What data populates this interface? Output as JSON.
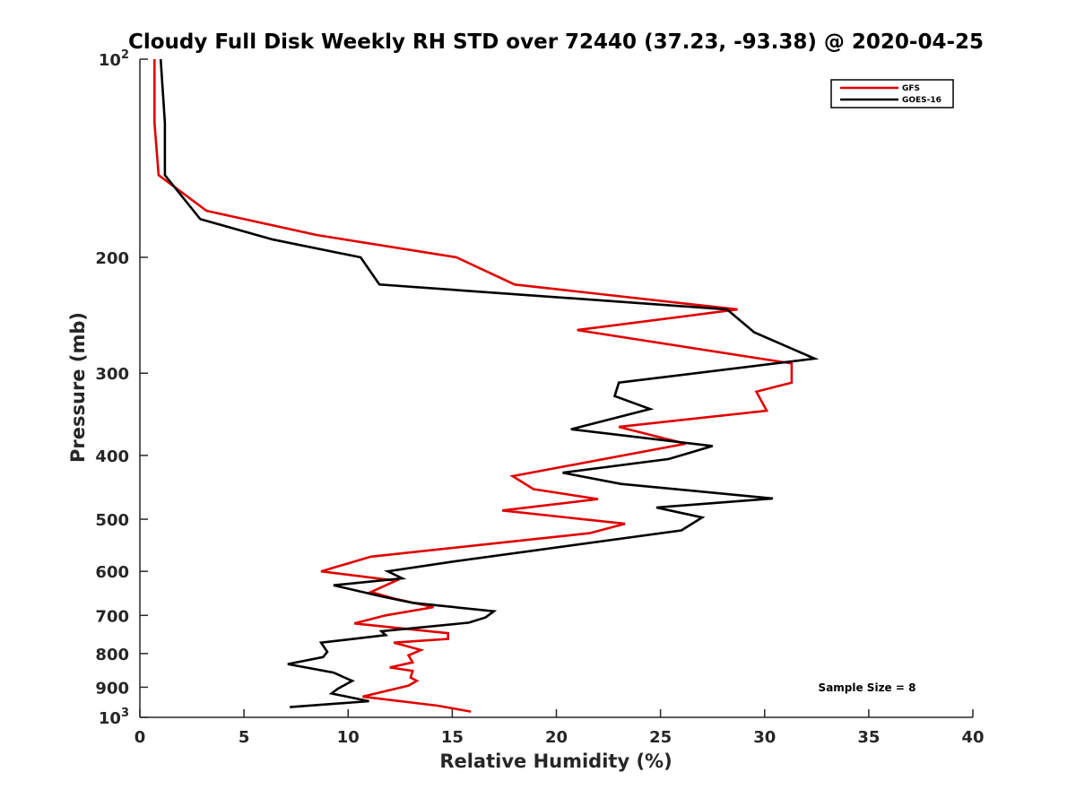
{
  "chart_data": {
    "type": "line",
    "title": "Cloudy Full Disk Weekly RH STD over 72440 (37.23, -93.38) @ 2020-04-25",
    "xlabel": "Relative Humidity (%)",
    "ylabel": "Pressure (mb)",
    "xlim": [
      0,
      40
    ],
    "ylim": [
      100,
      1000
    ],
    "y_scale": "log",
    "y_reversed": true,
    "grid": false,
    "legend_position": "top-right",
    "x_ticks": [
      "0",
      "5",
      "10",
      "15",
      "20",
      "25",
      "30",
      "35",
      "40"
    ],
    "y_ticks": [
      {
        "value": 100,
        "label": "10",
        "sup": "2"
      },
      {
        "value": 200,
        "label": "200",
        "sup": ""
      },
      {
        "value": 300,
        "label": "300",
        "sup": ""
      },
      {
        "value": 400,
        "label": "400",
        "sup": ""
      },
      {
        "value": 500,
        "label": "500",
        "sup": ""
      },
      {
        "value": 600,
        "label": "600",
        "sup": ""
      },
      {
        "value": 700,
        "label": "700",
        "sup": ""
      },
      {
        "value": 800,
        "label": "800",
        "sup": ""
      },
      {
        "value": 900,
        "label": "900",
        "sup": ""
      },
      {
        "value": 1000,
        "label": "10",
        "sup": "3"
      }
    ],
    "annotation": "Sample Size = 8",
    "series": [
      {
        "name": "GFS",
        "color": "#e00000",
        "points": [
          [
            0.7,
            100
          ],
          [
            0.7,
            125
          ],
          [
            0.9,
            150
          ],
          [
            3.2,
            170
          ],
          [
            8.5,
            185
          ],
          [
            15.2,
            200
          ],
          [
            18,
            220
          ],
          [
            28.7,
            240
          ],
          [
            21,
            258
          ],
          [
            31.3,
            290
          ],
          [
            31.3,
            310
          ],
          [
            29.6,
            320
          ],
          [
            30.1,
            342
          ],
          [
            23,
            362
          ],
          [
            26.2,
            384
          ],
          [
            17.9,
            430
          ],
          [
            18.9,
            450
          ],
          [
            22.0,
            466
          ],
          [
            17.4,
            485
          ],
          [
            23.3,
            508
          ],
          [
            21.6,
            525
          ],
          [
            11.1,
            570
          ],
          [
            8.7,
            600
          ],
          [
            12.3,
            620
          ],
          [
            11.1,
            645
          ],
          [
            12.2,
            660
          ],
          [
            14.1,
            680
          ],
          [
            11.8,
            700
          ],
          [
            10.3,
            720
          ],
          [
            14.8,
            745
          ],
          [
            14.8,
            760
          ],
          [
            12.2,
            770
          ],
          [
            13.5,
            790
          ],
          [
            12.9,
            805
          ],
          [
            13.1,
            825
          ],
          [
            12.0,
            840
          ],
          [
            13.1,
            850
          ],
          [
            13.0,
            870
          ],
          [
            13.3,
            880
          ],
          [
            12.9,
            895
          ],
          [
            10.7,
            930
          ],
          [
            14.3,
            960
          ],
          [
            15.9,
            980
          ]
        ]
      },
      {
        "name": "GOES-16",
        "color": "#000000",
        "points": [
          [
            1.0,
            100
          ],
          [
            1.2,
            125
          ],
          [
            1.2,
            150
          ],
          [
            2.9,
            175
          ],
          [
            6.4,
            188
          ],
          [
            10.6,
            200
          ],
          [
            11.5,
            220
          ],
          [
            28.2,
            240
          ],
          [
            29.5,
            260
          ],
          [
            32.4,
            285
          ],
          [
            23.0,
            310
          ],
          [
            22.8,
            325
          ],
          [
            24.5,
            340
          ],
          [
            20.7,
            365
          ],
          [
            27.5,
            387
          ],
          [
            25.4,
            405
          ],
          [
            20.3,
            425
          ],
          [
            23.1,
            442
          ],
          [
            30.4,
            465
          ],
          [
            24.8,
            480
          ],
          [
            27.0,
            497
          ],
          [
            26.0,
            520
          ],
          [
            15.0,
            580
          ],
          [
            11.9,
            600
          ],
          [
            12.6,
            615
          ],
          [
            9.3,
            630
          ],
          [
            11.6,
            655
          ],
          [
            13.1,
            670
          ],
          [
            17.0,
            690
          ],
          [
            16.6,
            705
          ],
          [
            15.8,
            718
          ],
          [
            11.6,
            740
          ],
          [
            11.8,
            750
          ],
          [
            8.7,
            770
          ],
          [
            9.0,
            795
          ],
          [
            8.8,
            810
          ],
          [
            7.1,
            830
          ],
          [
            9.3,
            855
          ],
          [
            10.0,
            875
          ],
          [
            10.2,
            880
          ],
          [
            9.5,
            905
          ],
          [
            9.2,
            920
          ],
          [
            11.0,
            945
          ],
          [
            7.2,
            965
          ]
        ]
      }
    ]
  }
}
